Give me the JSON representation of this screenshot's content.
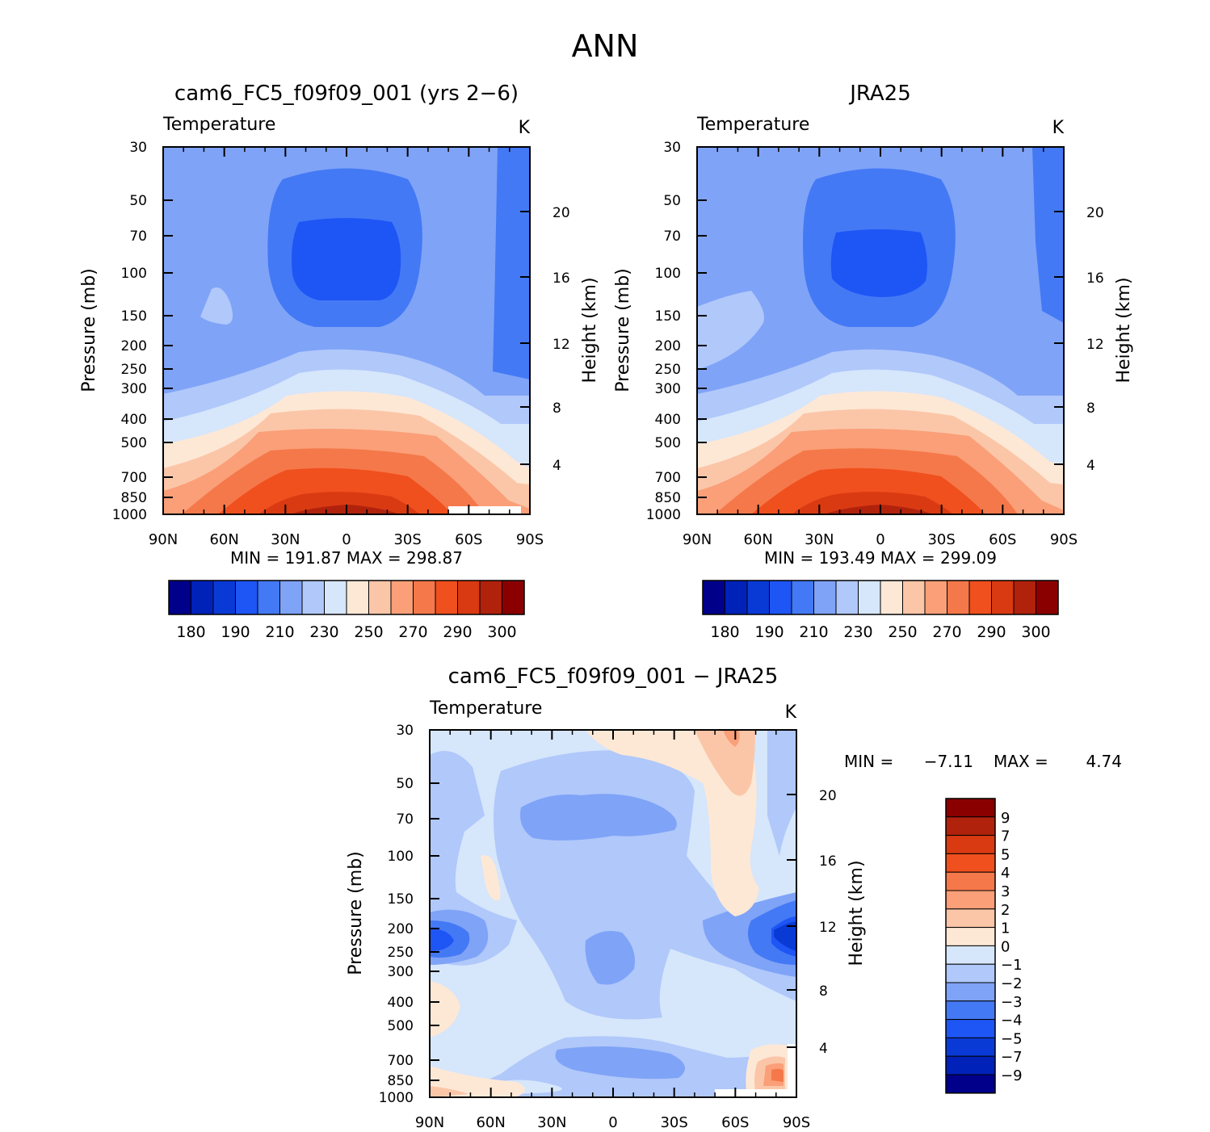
{
  "page_title": "ANN",
  "colorbar_ticks": [
    "180",
    "190",
    "210",
    "230",
    "250",
    "270",
    "290",
    "300"
  ],
  "colorbar_colors": [
    "#00008a",
    "#0022b8",
    "#0a3ad6",
    "#1e55f5",
    "#4479f5",
    "#7fa3f7",
    "#b0c8fa",
    "#d6e6fb",
    "#fde8d6",
    "#fbc6a8",
    "#fa9f78",
    "#f5784a",
    "#f04f1e",
    "#d93a12",
    "#b0220c",
    "#8a0000"
  ],
  "diff_colorbar_ticks": [
    "9",
    "7",
    "5",
    "4",
    "3",
    "2",
    "1",
    "0",
    "−1",
    "−2",
    "−3",
    "−4",
    "−5",
    "−7",
    "−9"
  ],
  "diff_colorbar_colors": [
    "#8a0000",
    "#b0220c",
    "#d93a12",
    "#f04f1e",
    "#f5784a",
    "#fa9f78",
    "#fbc6a8",
    "#fde8d6",
    "#d6e6fb",
    "#b0c8fa",
    "#7fa3f7",
    "#4479f5",
    "#1e55f5",
    "#0a3ad6",
    "#0022b8",
    "#00008a"
  ],
  "chart_data": [
    {
      "type": "heatmap",
      "title": "cam6_FC5_f09f09_001 (yrs 2−6)",
      "variable": "Temperature",
      "units": "K",
      "ylabel": "Pressure (mb)",
      "ylabel_right": "Height (km)",
      "x_ticks": [
        "90N",
        "60N",
        "30N",
        "0",
        "30S",
        "60S",
        "90S"
      ],
      "y_ticks": [
        "30",
        "50",
        "70",
        "100",
        "150",
        "200",
        "250",
        "300",
        "400",
        "500",
        "700",
        "850",
        "1000"
      ],
      "y_right_ticks": [
        "20",
        "16",
        "12",
        "8",
        "4"
      ],
      "min_max_text": "MIN = 191.87   MAX = 298.87",
      "min": 191.87,
      "max": 298.87,
      "levels": [
        180,
        190,
        200,
        210,
        220,
        230,
        240,
        250,
        260,
        270,
        280,
        290,
        295,
        300
      ]
    },
    {
      "type": "heatmap",
      "title": "JRA25",
      "variable": "Temperature",
      "units": "K",
      "ylabel": "Pressure (mb)",
      "ylabel_right": "Height (km)",
      "x_ticks": [
        "90N",
        "60N",
        "30N",
        "0",
        "30S",
        "60S",
        "90S"
      ],
      "y_ticks": [
        "30",
        "50",
        "70",
        "100",
        "150",
        "200",
        "250",
        "300",
        "400",
        "500",
        "700",
        "850",
        "1000"
      ],
      "y_right_ticks": [
        "20",
        "16",
        "12",
        "8",
        "4"
      ],
      "min_max_text": "MIN = 193.49   MAX = 299.09",
      "min": 193.49,
      "max": 299.09,
      "levels": [
        180,
        190,
        200,
        210,
        220,
        230,
        240,
        250,
        260,
        270,
        280,
        290,
        295,
        300
      ]
    },
    {
      "type": "heatmap",
      "title": "cam6_FC5_f09f09_001 − JRA25",
      "variable": "Temperature",
      "units": "K",
      "ylabel": "Pressure (mb)",
      "ylabel_right": "Height (km)",
      "x_ticks": [
        "90N",
        "60N",
        "30N",
        "0",
        "30S",
        "60S",
        "90S"
      ],
      "y_ticks": [
        "30",
        "50",
        "70",
        "100",
        "150",
        "200",
        "250",
        "300",
        "400",
        "500",
        "700",
        "850",
        "1000"
      ],
      "y_right_ticks": [
        "20",
        "16",
        "12",
        "8",
        "4"
      ],
      "min_label": "MIN =",
      "min_value": "−7.11",
      "max_label": "MAX =",
      "max_value": "4.74",
      "min": -7.11,
      "max": 4.74,
      "levels": [
        -9,
        -7,
        -5,
        -4,
        -3,
        -2,
        -1,
        0,
        1,
        2,
        3,
        4,
        5,
        7,
        9
      ]
    }
  ]
}
